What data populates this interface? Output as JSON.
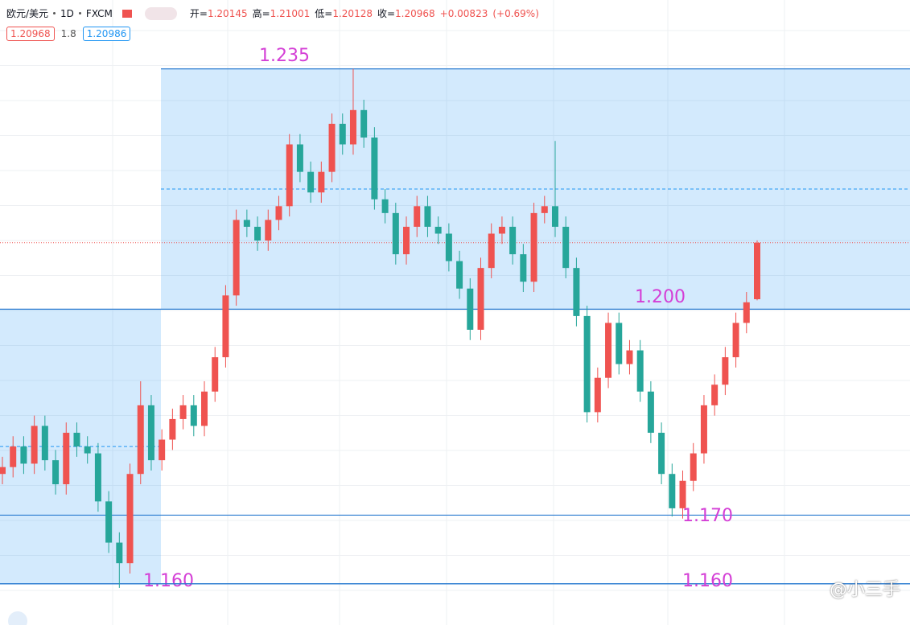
{
  "header": {
    "symbol": "欧元/美元",
    "interval": "1D",
    "source": "FXCM",
    "open_label": "开=",
    "high_label": "高=",
    "low_label": "低=",
    "close_label": "收=",
    "change": {
      "value": 0.00823,
      "label": "+0.00823"
    },
    "change_pct": {
      "value": 0.69,
      "label": "(+0.69%)"
    },
    "spread": 1.8,
    "ask": 1.20986
  },
  "chart_data": {
    "type": "candlestick",
    "open": [
      1.176,
      1.177,
      1.18,
      1.1775,
      1.183,
      1.178,
      1.1745,
      1.182,
      1.18,
      1.179,
      1.172,
      1.166,
      1.163,
      1.176,
      1.186,
      1.178,
      1.181,
      1.184,
      1.186,
      1.183,
      1.188,
      1.193,
      1.202,
      1.213,
      1.212,
      1.21,
      1.213,
      1.215,
      1.224,
      1.22,
      1.217,
      1.22,
      1.227,
      1.224,
      1.229,
      1.225,
      1.216,
      1.214,
      1.208,
      1.212,
      1.215,
      1.212,
      1.211,
      1.207,
      1.203,
      1.197,
      1.206,
      1.211,
      1.212,
      1.208,
      1.204,
      1.214,
      1.215,
      1.212,
      1.206,
      1.199,
      1.185,
      1.19,
      1.198,
      1.192,
      1.194,
      1.188,
      1.182,
      1.176,
      1.171,
      1.175,
      1.179,
      1.186,
      1.189,
      1.193,
      1.198,
      1.20145
    ],
    "high": [
      1.1785,
      1.1815,
      1.1815,
      1.1845,
      1.1845,
      1.1795,
      1.1835,
      1.1835,
      1.1815,
      1.1805,
      1.1735,
      1.1675,
      1.1775,
      1.1895,
      1.1875,
      1.1825,
      1.1855,
      1.1875,
      1.1875,
      1.1895,
      1.1945,
      1.2035,
      1.2145,
      1.2145,
      1.2135,
      1.2145,
      1.2165,
      1.2255,
      1.2255,
      1.2215,
      1.2215,
      1.2285,
      1.2285,
      1.235,
      1.2305,
      1.2265,
      1.2175,
      1.2155,
      1.2135,
      1.2165,
      1.2165,
      1.2135,
      1.2125,
      1.2085,
      1.2045,
      1.2075,
      1.2125,
      1.2135,
      1.2135,
      1.2095,
      1.2155,
      1.2165,
      1.2245,
      1.2135,
      1.2075,
      1.2005,
      1.1915,
      1.1995,
      1.1995,
      1.1955,
      1.1955,
      1.1895,
      1.1835,
      1.1775,
      1.1765,
      1.1805,
      1.1875,
      1.1905,
      1.1945,
      1.1995,
      1.2025,
      1.21001
    ],
    "low": [
      1.1745,
      1.1755,
      1.176,
      1.176,
      1.1765,
      1.173,
      1.173,
      1.1785,
      1.1775,
      1.1705,
      1.1645,
      1.1594,
      1.1615,
      1.1745,
      1.1765,
      1.1765,
      1.1795,
      1.1825,
      1.1815,
      1.1815,
      1.1865,
      1.1915,
      1.2005,
      1.2105,
      1.2085,
      1.2085,
      1.2115,
      1.2135,
      1.2185,
      1.2155,
      1.2155,
      1.2185,
      1.2225,
      1.2225,
      1.2235,
      1.2145,
      1.2125,
      1.2065,
      1.2065,
      1.2105,
      1.2105,
      1.2095,
      1.2055,
      1.2015,
      1.1955,
      1.1955,
      1.2045,
      1.2095,
      1.2065,
      1.2025,
      1.2025,
      1.2125,
      1.2105,
      1.2045,
      1.1975,
      1.1835,
      1.1835,
      1.1885,
      1.1905,
      1.1905,
      1.1865,
      1.1805,
      1.1745,
      1.1698,
      1.1695,
      1.1735,
      1.1775,
      1.1845,
      1.1875,
      1.1915,
      1.1965,
      1.20128
    ],
    "close": [
      1.177,
      1.18,
      1.1775,
      1.183,
      1.178,
      1.1745,
      1.182,
      1.18,
      1.179,
      1.172,
      1.166,
      1.163,
      1.176,
      1.186,
      1.178,
      1.181,
      1.184,
      1.186,
      1.183,
      1.188,
      1.193,
      1.202,
      1.213,
      1.212,
      1.21,
      1.213,
      1.215,
      1.224,
      1.22,
      1.217,
      1.22,
      1.227,
      1.224,
      1.229,
      1.225,
      1.216,
      1.214,
      1.208,
      1.212,
      1.215,
      1.212,
      1.211,
      1.207,
      1.203,
      1.197,
      1.206,
      1.211,
      1.212,
      1.208,
      1.204,
      1.214,
      1.215,
      1.212,
      1.206,
      1.199,
      1.185,
      1.19,
      1.198,
      1.192,
      1.194,
      1.188,
      1.182,
      1.176,
      1.171,
      1.175,
      1.179,
      1.186,
      1.189,
      1.193,
      1.198,
      1.201,
      1.20968
    ],
    "up_color": "#ef5350",
    "down_color": "#26a69a",
    "ylim": [
      1.154,
      1.238
    ],
    "grid": true,
    "zones": [
      {
        "from": 1.16,
        "to": 1.2
      },
      {
        "from": 1.2,
        "to": 1.235
      }
    ],
    "levels": [
      {
        "value": 1.235,
        "label": "1.235"
      },
      {
        "value": 1.2,
        "label": "1.200"
      },
      {
        "value": 1.17,
        "label": "1.170"
      },
      {
        "value": 1.16,
        "label": "1.160"
      },
      {
        "value": 1.16,
        "label": "1.160"
      }
    ]
  },
  "watermark": "@小三手"
}
